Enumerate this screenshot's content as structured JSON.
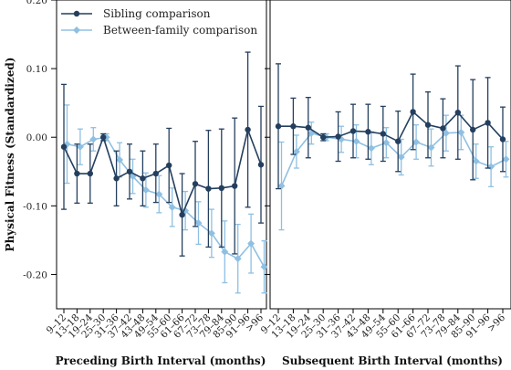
{
  "chart_data": {
    "type": "line",
    "ylabel": "Physical Fitness (Standardized)",
    "ylim": [
      -0.25,
      0.2
    ],
    "yticks": [
      0.2,
      0.1,
      0.0,
      -0.1,
      -0.2
    ],
    "ytick_labels": [
      "0.20",
      "0.10",
      "0.00",
      "-0.10",
      "-0.20"
    ],
    "categories": [
      "9–12",
      "13–18",
      "19–24",
      "25–30",
      "31–36",
      "37–42",
      "43–48",
      "49–54",
      "55–60",
      "61–66",
      "67–72",
      "73–78",
      "79–84",
      "85–90",
      "91–96",
      ">96"
    ],
    "legend": {
      "placement": "top-left",
      "entries": [
        {
          "name": "Sibling comparison",
          "color": "#243f5e",
          "marker": "circle"
        },
        {
          "name": "Between-family comparison",
          "color": "#8fc0e2",
          "marker": "diamond"
        }
      ]
    },
    "panels": [
      {
        "xlabel": "Preceding Birth Interval (months)",
        "series": [
          {
            "name": "Sibling comparison",
            "values": [
              -0.014,
              -0.053,
              -0.053,
              0.0,
              -0.06,
              -0.05,
              -0.06,
              -0.053,
              -0.041,
              -0.113,
              -0.068,
              -0.075,
              -0.074,
              -0.071,
              0.011,
              -0.04
            ],
            "lower": [
              -0.105,
              -0.096,
              -0.096,
              -0.005,
              -0.1,
              -0.09,
              -0.1,
              -0.095,
              -0.095,
              -0.173,
              -0.13,
              -0.16,
              -0.16,
              -0.17,
              -0.102,
              -0.125
            ],
            "upper": [
              0.077,
              -0.01,
              -0.01,
              0.005,
              -0.02,
              -0.01,
              -0.02,
              -0.01,
              0.013,
              -0.053,
              -0.006,
              0.01,
              0.012,
              0.028,
              0.124,
              0.045
            ]
          },
          {
            "name": "Between-family comparison",
            "values": [
              -0.01,
              -0.014,
              -0.003,
              0.0,
              -0.033,
              -0.057,
              -0.077,
              -0.083,
              -0.102,
              -0.107,
              -0.125,
              -0.14,
              -0.167,
              -0.177,
              -0.155,
              -0.189
            ],
            "lower": [
              -0.067,
              -0.04,
              -0.02,
              -0.005,
              -0.058,
              -0.082,
              -0.102,
              -0.11,
              -0.13,
              -0.135,
              -0.156,
              -0.175,
              -0.212,
              -0.227,
              -0.198,
              -0.227
            ],
            "upper": [
              0.047,
              0.012,
              0.014,
              0.005,
              -0.008,
              -0.032,
              -0.052,
              -0.056,
              -0.074,
              -0.079,
              -0.094,
              -0.105,
              -0.122,
              -0.127,
              -0.112,
              -0.151
            ]
          }
        ]
      },
      {
        "xlabel": "Subsequent Birth Interval (months)",
        "series": [
          {
            "name": "Sibling comparison",
            "values": [
              0.016,
              0.016,
              0.014,
              0.0,
              0.001,
              0.009,
              0.008,
              0.005,
              -0.006,
              0.037,
              0.018,
              0.013,
              0.036,
              0.011,
              0.021,
              -0.003
            ],
            "lower": [
              -0.075,
              -0.025,
              -0.03,
              -0.005,
              -0.035,
              -0.03,
              -0.032,
              -0.035,
              -0.05,
              -0.018,
              -0.03,
              -0.03,
              -0.032,
              -0.062,
              -0.045,
              -0.05
            ],
            "upper": [
              0.107,
              0.057,
              0.058,
              0.005,
              0.037,
              0.048,
              0.048,
              0.045,
              0.038,
              0.092,
              0.066,
              0.056,
              0.104,
              0.084,
              0.087,
              0.044
            ]
          },
          {
            "name": "Between-family comparison",
            "values": [
              -0.071,
              -0.021,
              0.006,
              0.0,
              -0.003,
              -0.006,
              -0.016,
              -0.008,
              -0.029,
              -0.007,
              -0.015,
              0.006,
              0.007,
              -0.035,
              -0.043,
              -0.032
            ],
            "lower": [
              -0.135,
              -0.045,
              -0.01,
              -0.005,
              -0.022,
              -0.03,
              -0.04,
              -0.03,
              -0.055,
              -0.032,
              -0.042,
              -0.02,
              -0.018,
              -0.06,
              -0.072,
              -0.058
            ],
            "upper": [
              -0.007,
              0.003,
              0.022,
              0.005,
              0.016,
              0.018,
              0.008,
              0.014,
              -0.003,
              0.018,
              0.012,
              0.032,
              0.032,
              -0.01,
              -0.014,
              -0.006
            ]
          }
        ]
      }
    ]
  }
}
